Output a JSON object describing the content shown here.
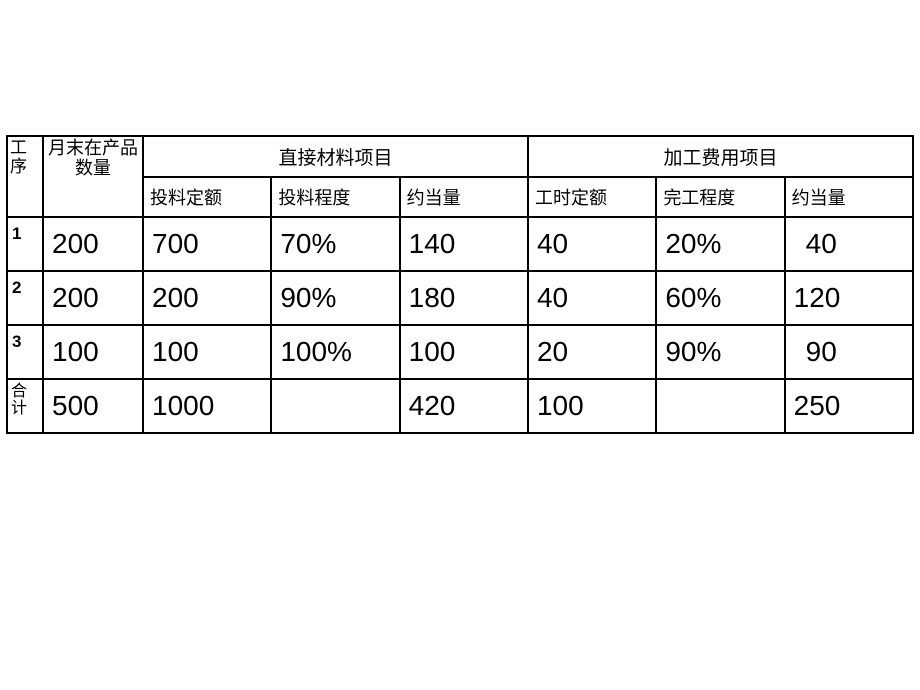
{
  "table": {
    "headers": {
      "gongxu": "工序",
      "yuemo": "月末在产品数量",
      "zhijie_group": "直接材料项目",
      "jiagong_group": "加工费用项目",
      "touliao_dinge": "投料定额",
      "touliao_chengdu": "投料程度",
      "yuedang_1": "约当量",
      "gongshi_dinge": "工时定额",
      "wangong_chengdu": "完工程度",
      "yuedang_2": "约当量"
    },
    "rows": [
      {
        "label": "1",
        "yuemo": "200",
        "touliao_dinge": "700",
        "touliao_chengdu": "70%",
        "yuedang_1": "140",
        "gongshi_dinge": "40",
        "wangong_chengdu": "20%",
        "yuedang_2": " 40",
        "label_bold": true
      },
      {
        "label": "2",
        "yuemo": "200",
        "touliao_dinge": "200",
        "touliao_chengdu": "90%",
        "yuedang_1": "180",
        "gongshi_dinge": "40",
        "wangong_chengdu": "60%",
        "yuedang_2": "120",
        "label_bold": true
      },
      {
        "label": "3",
        "yuemo": "100",
        "touliao_dinge": "100",
        "touliao_chengdu": "100%",
        "yuedang_1": "100",
        "gongshi_dinge": "20",
        "wangong_chengdu": "90%",
        "yuedang_2": " 90",
        "label_bold": true
      },
      {
        "label": "合计",
        "yuemo": "500",
        "touliao_dinge": "1000",
        "touliao_chengdu": "",
        "yuedang_1": "420",
        "gongshi_dinge": "100",
        "wangong_chengdu": "",
        "yuedang_2": "250",
        "label_bold": false
      }
    ]
  },
  "colors": {
    "background": "#ffffff",
    "border": "#000000",
    "text": "#000000"
  }
}
